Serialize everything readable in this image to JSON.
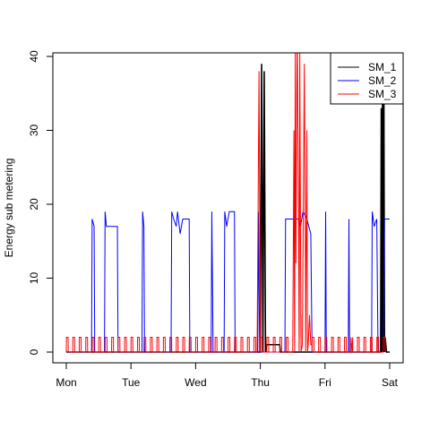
{
  "chart_data": {
    "type": "line",
    "ylabel": "Energy sub metering",
    "xlabel": "",
    "x_ticks": [
      "Mon",
      "Tue",
      "Wed",
      "Thu",
      "Fri",
      "Sat"
    ],
    "y_ticks": [
      0,
      10,
      20,
      30,
      40
    ],
    "xlim": [
      0,
      5
    ],
    "ylim": [
      0,
      40
    ],
    "grid": false,
    "legend_position": "top-right",
    "series": [
      {
        "name": "SM_1",
        "color": "#000000",
        "points": [
          [
            0,
            0
          ],
          [
            3.0,
            0
          ],
          [
            3.02,
            39
          ],
          [
            3.04,
            0
          ],
          [
            3.06,
            38
          ],
          [
            3.08,
            0
          ],
          [
            3.1,
            1
          ],
          [
            3.3,
            1
          ],
          [
            3.31,
            0
          ],
          [
            4.2,
            0
          ],
          [
            4.3,
            0
          ],
          [
            4.86,
            0
          ],
          [
            4.87,
            33
          ],
          [
            4.88,
            0
          ],
          [
            4.89,
            38
          ],
          [
            4.9,
            0
          ],
          [
            4.91,
            36
          ],
          [
            4.92,
            0
          ],
          [
            4.93,
            2
          ],
          [
            4.95,
            0
          ],
          [
            5.0,
            0
          ]
        ]
      },
      {
        "name": "SM_2",
        "color": "#0000ff",
        "points": [
          [
            0,
            0
          ],
          [
            0.39,
            0
          ],
          [
            0.4,
            18
          ],
          [
            0.43,
            17
          ],
          [
            0.44,
            0
          ],
          [
            0.59,
            0
          ],
          [
            0.6,
            19
          ],
          [
            0.62,
            17
          ],
          [
            0.79,
            17
          ],
          [
            0.8,
            0
          ],
          [
            1.17,
            0
          ],
          [
            1.18,
            19
          ],
          [
            1.2,
            17
          ],
          [
            1.21,
            0
          ],
          [
            1.62,
            0
          ],
          [
            1.63,
            19
          ],
          [
            1.66,
            18
          ],
          [
            1.7,
            17
          ],
          [
            1.72,
            19
          ],
          [
            1.76,
            16
          ],
          [
            1.8,
            18
          ],
          [
            1.9,
            18
          ],
          [
            1.91,
            0
          ],
          [
            2.24,
            0
          ],
          [
            2.25,
            19
          ],
          [
            2.27,
            0
          ],
          [
            2.44,
            0
          ],
          [
            2.45,
            19
          ],
          [
            2.48,
            17
          ],
          [
            2.52,
            19
          ],
          [
            2.6,
            19
          ],
          [
            2.61,
            0
          ],
          [
            2.96,
            0
          ],
          [
            2.97,
            19
          ],
          [
            2.99,
            0
          ],
          [
            3.38,
            0
          ],
          [
            3.39,
            18
          ],
          [
            3.6,
            18
          ],
          [
            3.62,
            17
          ],
          [
            3.66,
            19
          ],
          [
            3.72,
            18
          ],
          [
            3.78,
            16
          ],
          [
            3.8,
            0
          ],
          [
            4.0,
            0
          ],
          [
            4.01,
            19
          ],
          [
            4.02,
            0
          ],
          [
            4.36,
            0
          ],
          [
            4.37,
            18
          ],
          [
            4.38,
            0
          ],
          [
            4.72,
            0
          ],
          [
            4.73,
            19
          ],
          [
            4.76,
            17
          ],
          [
            4.8,
            18
          ],
          [
            4.82,
            0
          ],
          [
            4.9,
            0
          ],
          [
            4.92,
            18
          ],
          [
            5.0,
            18
          ]
        ]
      },
      {
        "name": "SM_3",
        "color": "#ff0000",
        "pattern": {
          "start": 0.0,
          "end": 5.0,
          "period": 0.1,
          "peak": 2,
          "base": 0
        },
        "points": [
          [
            2.95,
            0
          ],
          [
            2.98,
            38
          ],
          [
            3.0,
            2
          ],
          [
            3.04,
            0
          ],
          [
            3.5,
            0
          ],
          [
            3.52,
            30
          ],
          [
            3.54,
            41
          ],
          [
            3.55,
            12
          ],
          [
            3.57,
            44
          ],
          [
            3.59,
            20
          ],
          [
            3.61,
            41
          ],
          [
            3.63,
            5
          ],
          [
            3.65,
            1
          ],
          [
            3.68,
            39
          ],
          [
            3.7,
            8
          ],
          [
            3.72,
            30
          ],
          [
            3.74,
            1
          ],
          [
            3.76,
            5
          ],
          [
            3.78,
            1
          ],
          [
            3.8,
            1
          ],
          [
            4.4,
            1
          ],
          [
            4.42,
            0
          ]
        ]
      }
    ]
  }
}
